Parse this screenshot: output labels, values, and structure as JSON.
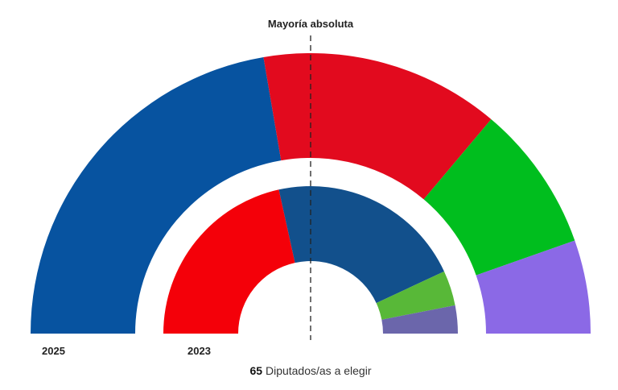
{
  "chart_data": {
    "type": "parliament-semicircle",
    "title": "",
    "majority_label": "Mayoría absoluta",
    "total_seats": 65,
    "total_label": "Diputados/as a elegir",
    "rings": [
      {
        "name": "2025",
        "position": "outer",
        "segments": [
          {
            "color": "#0753a0",
            "seats": 29
          },
          {
            "color": "#e20a1e",
            "seats": 18
          },
          {
            "color": "#00be1e",
            "seats": 11
          },
          {
            "color": "#8b69e6",
            "seats": 7
          }
        ]
      },
      {
        "name": "2023",
        "position": "inner",
        "segments": [
          {
            "color": "#f40009",
            "seats": 28
          },
          {
            "color": "#12508c",
            "seats": 28
          },
          {
            "color": "#58b838",
            "seats": 5
          },
          {
            "color": "#6b66ab",
            "seats": 4
          }
        ]
      }
    ]
  },
  "labels": {
    "majority": "Mayoría absoluta",
    "year_outer": "2025",
    "year_inner": "2023",
    "total_number": "65",
    "total_text": " Diputados/as a elegir"
  }
}
